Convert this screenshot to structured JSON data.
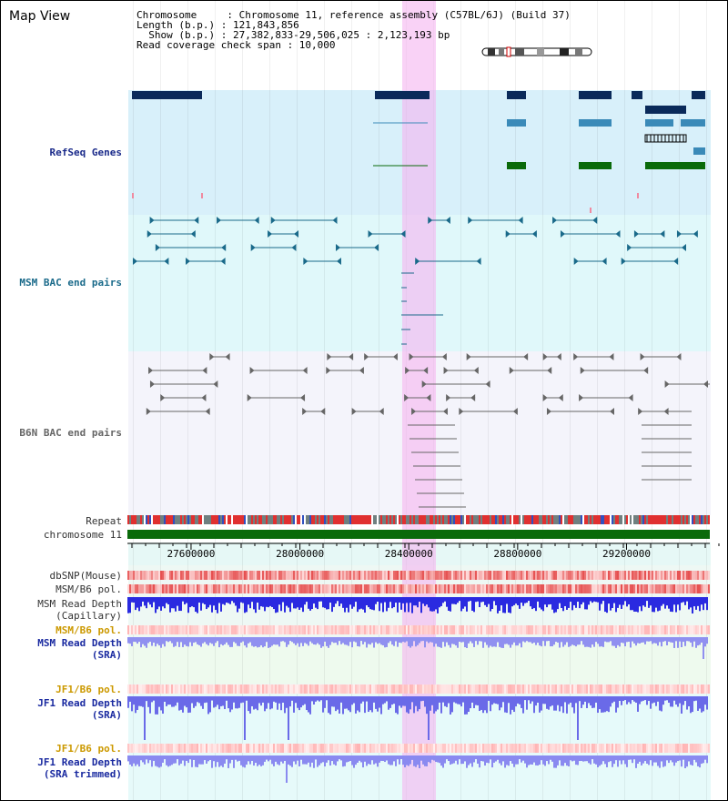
{
  "header": {
    "title": "Map View",
    "info_line1": "Chromosome     : Chromosome 11, reference assembly (C57BL/6J) (Build 37)",
    "info_line2": "Length (b.p.) : 121,843,856",
    "info_line3": "  Show (b.p.) : 27,382,833-29,506,025 : 2,123,193 bp",
    "info_line4": "Read coverage check span : 10,000"
  },
  "tracks": {
    "refseq": "RefSeq Genes",
    "msm_bac": "MSM BAC end pairs",
    "b6n_bac": "B6N BAC end pairs",
    "repeat": "Repeat",
    "chromosome": "chromosome 11",
    "dbsnp": "dbSNP(Mouse)",
    "msm_b6_pol": "MSM/B6 pol.",
    "msm_depth_cap_1": "MSM Read Depth",
    "msm_depth_cap_2": "(Capillary)",
    "msm_b6_pol2": "MSM/B6 pol.",
    "msm_depth_sra_1": "MSM Read Depth",
    "msm_depth_sra_2": "(SRA)",
    "jf1_b6_pol": "JF1/B6 pol.",
    "jf1_depth_1": "JF1 Read Depth",
    "jf1_depth_2": "(SRA)",
    "jf1_b6_pol2": "JF1/B6 pol.",
    "jf1_trim_1": "JF1 Read Depth",
    "jf1_trim_2": "(SRA trimmed)"
  },
  "axis": {
    "ticks": [
      {
        "label": "27600000",
        "value": 27600000
      },
      {
        "label": "28000000",
        "value": 28000000
      },
      {
        "label": "28400000",
        "value": 28400000
      },
      {
        "label": "28800000",
        "value": 28800000
      },
      {
        "label": "29200000",
        "value": 29200000
      }
    ],
    "range": [
      27382833,
      29506025
    ]
  },
  "colors": {
    "highlight": "#f5b4f0",
    "refseq_bg": "#d8f0fa",
    "msm_bg": "#e0f8fa",
    "b6n_bg": "#f4f4fb",
    "gene_dark": "#0a2a5a",
    "gene_mid": "#3a8ab8",
    "gene_green": "#0a6a0a",
    "chrom": "#0a6a0a",
    "depth": "#5050e0",
    "snp": "#f05050"
  }
}
